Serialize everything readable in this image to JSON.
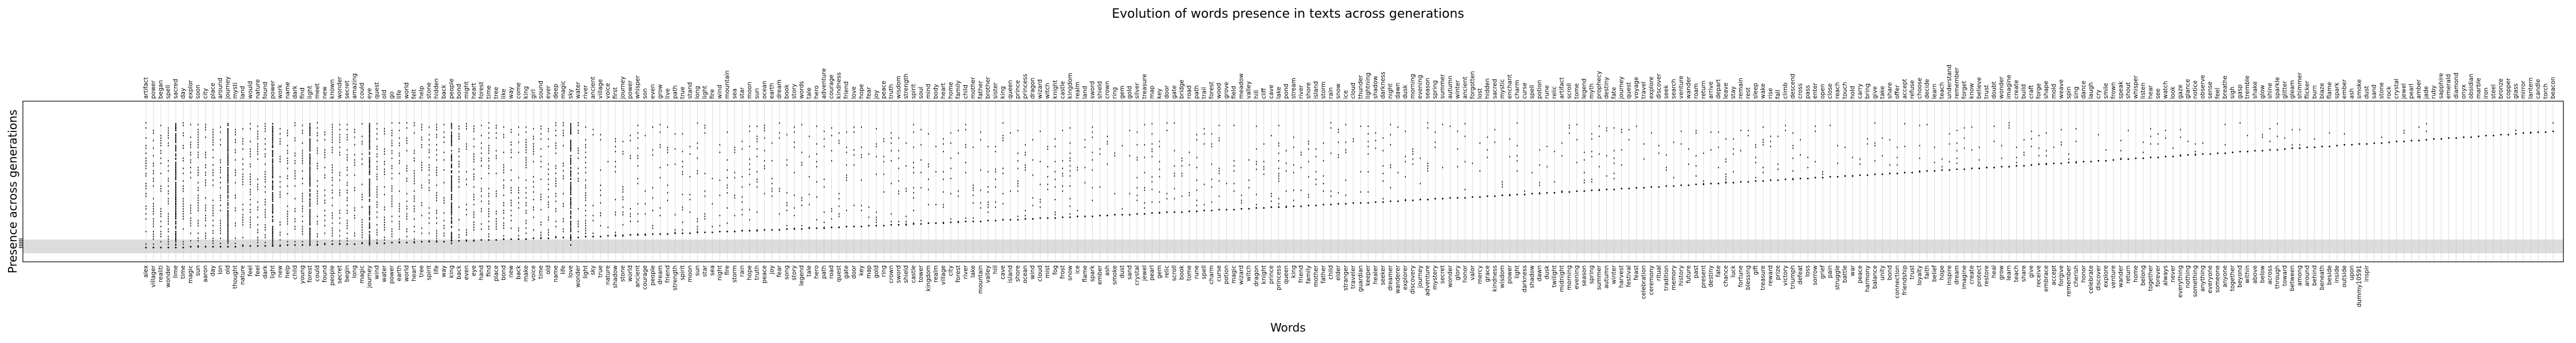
{
  "chart_data": {
    "type": "scatter",
    "title": "Evolution of words presence in texts across generations",
    "xlabel": "Words",
    "ylabel": "Presence across generations",
    "generations": 150,
    "grid": "vertical",
    "top_words": [
      "artifact",
      "power",
      "began",
      "spell",
      "sacred",
      "day",
      "explor",
      "soon",
      "city",
      "place",
      "around",
      "journey",
      "mysti",
      "land",
      "would",
      "nature",
      "found",
      "power",
      "work",
      "name",
      "dark",
      "find",
      "light",
      "meet",
      "new",
      "known",
      "wonder",
      "secret",
      "amazing",
      "could",
      "eye",
      "quest",
      "old",
      "go",
      "life",
      "world",
      "felt",
      "help",
      "stone",
      "hidden",
      "back",
      "people",
      "bond",
      "might",
      "heart",
      "forest",
      "time",
      "tree",
      "like",
      "way",
      "come",
      "king",
      "girl",
      "sound",
      "ever",
      "deep",
      "magic",
      "sky",
      "water",
      "river",
      "ancient",
      "village",
      "voice",
      "first",
      "journey",
      "power",
      "whisper",
      "son",
      "even",
      "grow",
      "live",
      "path",
      "true",
      "stand",
      "long",
      "light",
      "fire",
      "wind",
      "mountain",
      "sea",
      "star",
      "moon",
      "sun",
      "ocean",
      "earth",
      "dream",
      "book",
      "story",
      "words",
      "tale",
      "hero",
      "adventure",
      "courage",
      "kindness",
      "friend",
      "love",
      "hope",
      "fear",
      "joy",
      "peace",
      "truth",
      "wisdom",
      "strength",
      "spirit",
      "soul",
      "mind",
      "body",
      "heart",
      "home",
      "family",
      "child",
      "mother",
      "father",
      "brother",
      "sister",
      "king",
      "queen",
      "prince",
      "princess",
      "dragon",
      "wizard",
      "witch",
      "knight",
      "castle",
      "kingdom",
      "realm",
      "land",
      "sword",
      "shield",
      "crown",
      "ring",
      "gem",
      "gold",
      "silver",
      "treasure",
      "map",
      "key",
      "door",
      "gate",
      "bridge",
      "road",
      "path",
      "trail",
      "forest",
      "wood",
      "grove",
      "field",
      "meadow",
      "valley",
      "hill",
      "cliff",
      "cave",
      "lake",
      "pond",
      "stream",
      "river",
      "shore",
      "island",
      "storm",
      "rain",
      "snow",
      "ice",
      "cloud",
      "thunder",
      "lightning",
      "shadow",
      "darkness",
      "night",
      "dawn",
      "dusk",
      "morning",
      "evening",
      "season",
      "spring",
      "summer",
      "autumn",
      "winter",
      "ancient",
      "forgotten",
      "lost",
      "hidden",
      "sacred",
      "mystic",
      "enchant",
      "charm",
      "curse",
      "spell",
      "potion",
      "rune",
      "relic",
      "artifact",
      "scroll",
      "tome",
      "legend",
      "myth",
      "prophecy",
      "destiny",
      "fate",
      "journey",
      "quest",
      "voyage",
      "travel",
      "explore",
      "discover",
      "seek",
      "search",
      "venture",
      "wander",
      "roam",
      "return",
      "arrive",
      "depart",
      "leave",
      "stay",
      "remain",
      "rest",
      "sleep",
      "wake",
      "rise",
      "fall",
      "climb",
      "descend",
      "cross",
      "pass",
      "enter",
      "open",
      "close",
      "reach",
      "touch",
      "hold",
      "carry",
      "bring",
      "give",
      "take",
      "share",
      "offer",
      "accept",
      "refuse",
      "choose",
      "decide",
      "learn",
      "teach",
      "understand",
      "remember",
      "forget",
      "know",
      "believe",
      "trust",
      "doubt",
      "wonder",
      "imagine",
      "create",
      "build",
      "craft",
      "forge",
      "shape",
      "mold",
      "weave",
      "spin",
      "sing",
      "dance",
      "laugh",
      "cry",
      "smile",
      "frown",
      "speak",
      "shout",
      "whisper",
      "listen",
      "hear",
      "see",
      "watch",
      "look",
      "gaze",
      "glance",
      "notice",
      "observe",
      "sense",
      "feel",
      "breathe",
      "sigh",
      "gasp",
      "tremble",
      "shake",
      "glow",
      "shine",
      "sparkle",
      "glitter",
      "gleam",
      "shimmer",
      "flicker",
      "burn",
      "blaze",
      "flame",
      "spark",
      "ember",
      "ash",
      "smoke",
      "dust",
      "sand",
      "stone",
      "rock",
      "crystal",
      "jewel",
      "pearl",
      "amber",
      "jade",
      "ruby",
      "sapphire",
      "emerald",
      "diamond",
      "onyx",
      "obsidian",
      "marble",
      "iron",
      "steel",
      "bronze",
      "copper",
      "glass",
      "mirror",
      "lantern",
      "candle",
      "torch",
      "beacon"
    ],
    "bottom_words": [
      "alex",
      "villager",
      "realiti",
      "wonder",
      "lime",
      "time",
      "magic",
      "sun",
      "aaron",
      "day",
      "lon",
      "old",
      "thought",
      "nature",
      "feel",
      "feel",
      "dark",
      "light",
      "new",
      "help",
      "child",
      "young",
      "forest",
      "could",
      "found",
      "people",
      "secret",
      "begin",
      "long",
      "magic",
      "journey",
      "wind",
      "water",
      "power",
      "earth",
      "world",
      "heart",
      "tree",
      "spirit",
      "life",
      "way",
      "king",
      "back",
      "even",
      "eye",
      "hand",
      "find",
      "place",
      "bond",
      "new",
      "back",
      "make",
      "voice",
      "time",
      "old",
      "name",
      "life",
      "love",
      "wonder",
      "light",
      "sky",
      "true",
      "nature",
      "shadow",
      "stone",
      "world",
      "ancient",
      "courage",
      "people",
      "dream",
      "friend",
      "strength",
      "spirit",
      "moon",
      "sun",
      "star",
      "sea",
      "night",
      "fire",
      "storm",
      "rain",
      "hope",
      "truth",
      "peace",
      "joy",
      "fear",
      "song",
      "story",
      "legend",
      "tale",
      "hero",
      "path",
      "road",
      "quest",
      "gate",
      "door",
      "key",
      "map",
      "gold",
      "ring",
      "crown",
      "sword",
      "shield",
      "castle",
      "tower",
      "kingdom",
      "realm",
      "village",
      "city",
      "forest",
      "river",
      "lake",
      "mountain",
      "valley",
      "hill",
      "cave",
      "island",
      "shore",
      "ocean",
      "wind",
      "cloud",
      "mist",
      "fog",
      "frost",
      "snow",
      "ice",
      "flame",
      "spark",
      "ember",
      "ash",
      "smoke",
      "dust",
      "sand",
      "crystal",
      "jewel",
      "pearl",
      "gem",
      "relic",
      "scroll",
      "book",
      "tome",
      "rune",
      "spell",
      "charm",
      "curse",
      "potion",
      "magic",
      "wizard",
      "witch",
      "dragon",
      "knight",
      "prince",
      "princess",
      "queen",
      "king",
      "friend",
      "family",
      "mother",
      "father",
      "child",
      "elder",
      "stranger",
      "traveler",
      "guardian",
      "keeper",
      "healer",
      "seeker",
      "dreamer",
      "wanderer",
      "explorer",
      "discovery",
      "journey",
      "adventure",
      "mystery",
      "secret",
      "wonder",
      "glory",
      "honor",
      "valor",
      "mercy",
      "grace",
      "kindness",
      "wisdom",
      "power",
      "light",
      "darkness",
      "shadow",
      "dawn",
      "dusk",
      "twilight",
      "midnight",
      "morning",
      "evening",
      "season",
      "spring",
      "summer",
      "autumn",
      "winter",
      "harvest",
      "festival",
      "feast",
      "celebration",
      "ceremony",
      "ritual",
      "tradition",
      "memory",
      "history",
      "future",
      "past",
      "present",
      "destiny",
      "fate",
      "chance",
      "luck",
      "fortune",
      "blessing",
      "gift",
      "treasure",
      "reward",
      "prize",
      "victory",
      "triumph",
      "defeat",
      "loss",
      "sorrow",
      "grief",
      "pain",
      "struggle",
      "battle",
      "war",
      "peace",
      "harmony",
      "balance",
      "unity",
      "bond",
      "connection",
      "friendship",
      "trust",
      "loyalty",
      "faith",
      "belief",
      "hope",
      "inspire",
      "dream",
      "imagine",
      "create",
      "protect",
      "restore",
      "heal",
      "grow",
      "learn",
      "teach",
      "share",
      "give",
      "receive",
      "embrace",
      "accept",
      "forgive",
      "remember",
      "cherish",
      "honor",
      "celebrate",
      "discover",
      "explore",
      "venture",
      "wander",
      "return",
      "home",
      "belong",
      "together",
      "forever",
      "always",
      "never",
      "everything",
      "nothing",
      "something",
      "anything",
      "everyone",
      "someone",
      "anyone",
      "together",
      "beyond",
      "within",
      "above",
      "below",
      "across",
      "through",
      "toward",
      "between",
      "among",
      "around",
      "behind",
      "beneath",
      "beside",
      "inside",
      "outside",
      "upon",
      "dummy10591",
      "inspir"
    ]
  }
}
